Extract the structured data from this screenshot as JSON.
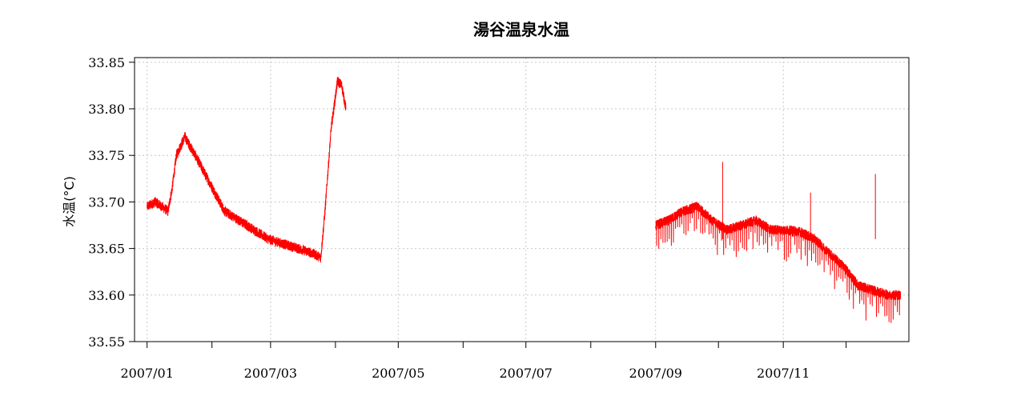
{
  "chart_data": {
    "type": "line",
    "title": "湯谷温泉水温",
    "xlabel": "",
    "ylabel": "水温(°C)",
    "ylim": [
      33.55,
      33.855
    ],
    "xlim": [
      "2006-12-26",
      "2007-12-31"
    ],
    "grid": true,
    "color": "#ff0000",
    "x_tick_labels": [
      "2007/01",
      "2007/03",
      "2007/05",
      "2007/07",
      "2007/09",
      "2007/11"
    ],
    "x_ticks_labeled": [
      "2007-01-01",
      "2007-03-01",
      "2007-05-01",
      "2007-07-01",
      "2007-09-01",
      "2007-11-01"
    ],
    "x_ticks_all": [
      "2007-01-01",
      "2007-02-01",
      "2007-03-01",
      "2007-04-01",
      "2007-05-01",
      "2007-06-01",
      "2007-07-01",
      "2007-08-01",
      "2007-09-01",
      "2007-10-01",
      "2007-11-01",
      "2007-12-01"
    ],
    "y_tick_labels": [
      "33.55",
      "33.60",
      "33.65",
      "33.70",
      "33.75",
      "33.80",
      "33.85"
    ],
    "y_ticks": [
      33.55,
      33.6,
      33.65,
      33.7,
      33.75,
      33.8,
      33.85
    ],
    "series": [
      {
        "segment": 1,
        "x": [
          "2007-01-01",
          "2007-01-05",
          "2007-01-08",
          "2007-01-11",
          "2007-01-13",
          "2007-01-15",
          "2007-01-19",
          "2007-01-24",
          "2007-01-31",
          "2007-02-07",
          "2007-02-14",
          "2007-02-21",
          "2007-02-28",
          "2007-03-07",
          "2007-03-14",
          "2007-03-21",
          "2007-03-25",
          "2007-03-27",
          "2007-03-30",
          "2007-04-02",
          "2007-04-04",
          "2007-04-06"
        ],
        "y": [
          33.695,
          33.7,
          33.695,
          33.69,
          33.715,
          33.75,
          33.77,
          33.75,
          33.72,
          33.69,
          33.68,
          33.67,
          33.66,
          33.655,
          33.65,
          33.645,
          33.64,
          33.69,
          33.78,
          33.83,
          33.825,
          33.8
        ]
      },
      {
        "segment": 2,
        "x": [
          "2007-09-01",
          "2007-09-07",
          "2007-09-14",
          "2007-09-21",
          "2007-09-28",
          "2007-10-05",
          "2007-10-12",
          "2007-10-19",
          "2007-10-26",
          "2007-11-02",
          "2007-11-09",
          "2007-11-16",
          "2007-11-23",
          "2007-11-30",
          "2007-12-07",
          "2007-12-14",
          "2007-12-21",
          "2007-12-27"
        ],
        "y": [
          33.675,
          33.68,
          33.69,
          33.695,
          33.68,
          33.67,
          33.675,
          33.68,
          33.67,
          33.67,
          33.668,
          33.66,
          33.645,
          33.63,
          33.61,
          33.605,
          33.6,
          33.6
        ]
      }
    ],
    "noise_amplitude": 0.006,
    "dip_depth": 0.025,
    "spikes": [
      {
        "x": "2007-10-03",
        "y": 33.743
      },
      {
        "x": "2007-11-14",
        "y": 33.71
      },
      {
        "x": "2007-12-15",
        "y": 33.73
      }
    ]
  }
}
